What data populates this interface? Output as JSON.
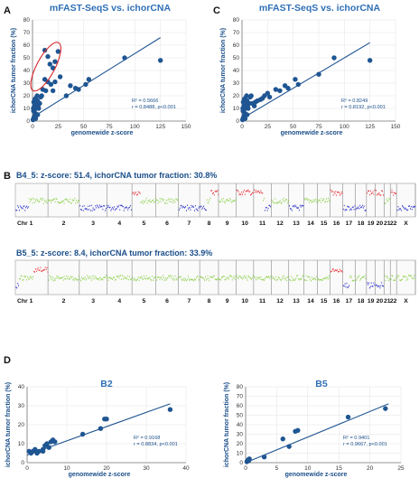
{
  "panels": {
    "A": "A",
    "B": "B",
    "C": "C",
    "D": "D"
  },
  "colors": {
    "point": "#1f5592",
    "title": "#2f6fb6",
    "gain": "#e8333a",
    "loss": "#2f35c9",
    "neutral": "#8fd14f",
    "ellipse": "#d7262b"
  },
  "cnv": {
    "b4_title": "B4_5: z-score: 51.4, ichorCNA tumor fraction: 30.8%",
    "b5_title": "B5_5: z-score: 8.4, ichorCNA tumor fraction: 33.9%",
    "chromosomes": [
      "Chr 1",
      "2",
      "3",
      "4",
      "5",
      "6",
      "7",
      "8",
      "9",
      "10",
      "11",
      "12",
      "13",
      "14",
      "15",
      "16",
      "17",
      "18",
      "19",
      "20",
      "21",
      "22",
      "X"
    ]
  },
  "chart_data": [
    {
      "id": "A",
      "type": "scatter",
      "title": "mFAST-SeqS vs. ichorCNA",
      "xlabel": "genomewide z-score",
      "ylabel": "ichorCNA tumor fraction (%)",
      "xlim": [
        0,
        150
      ],
      "ylim": [
        0,
        80
      ],
      "xticks": [
        0,
        25,
        50,
        75,
        100,
        125,
        150
      ],
      "yticks": [
        0,
        10,
        20,
        30,
        40,
        50,
        60,
        70,
        80
      ],
      "stats": [
        "R² = 0.5666",
        "r  = 0.8488, p<0.001"
      ],
      "fit": [
        [
          0,
          3
        ],
        [
          125,
          66
        ]
      ],
      "highlight": "ellipse",
      "x": [
        0.5,
        1,
        1.5,
        2,
        2.5,
        3,
        1,
        2,
        0.8,
        1.8,
        3.5,
        4,
        2.5,
        3,
        1.2,
        2.2,
        3,
        4.5,
        5,
        6,
        5,
        7,
        8,
        6,
        9,
        10,
        12,
        13,
        15,
        18,
        20,
        22,
        12,
        15,
        17,
        20,
        22,
        25,
        27,
        33,
        37,
        42,
        45,
        52,
        55,
        90,
        125
      ],
      "y": [
        1,
        2,
        3,
        4,
        5,
        6,
        8,
        9,
        10,
        12,
        11,
        14,
        3,
        2,
        15,
        17,
        18,
        20,
        5,
        10,
        16,
        14,
        19,
        13,
        20,
        25,
        33,
        24,
        31,
        29,
        24,
        31,
        56,
        51,
        45,
        42,
        47,
        55,
        35,
        20,
        28,
        26,
        25,
        29,
        33,
        50,
        48
      ]
    },
    {
      "id": "C",
      "type": "scatter",
      "title": "mFAST-SeqS vs. ichorCNA",
      "xlabel": "genomewide z-score",
      "ylabel": "ichorCNA tumor fraction (%)",
      "xlim": [
        0,
        150
      ],
      "ylim": [
        0,
        80
      ],
      "xticks": [
        0,
        25,
        50,
        75,
        100,
        125,
        150
      ],
      "yticks": [
        0,
        10,
        20,
        30,
        40,
        50,
        60,
        70,
        80
      ],
      "stats": [
        "R² = 0.8249",
        "r  = 0.8192, p<0.001"
      ],
      "fit": [
        [
          0,
          2
        ],
        [
          125,
          62
        ]
      ],
      "x": [
        0.5,
        1,
        1.5,
        2,
        2.5,
        3,
        1,
        2,
        0.8,
        1.8,
        3.5,
        4,
        2.5,
        3,
        1.2,
        2.2,
        3,
        4.5,
        5,
        6,
        5,
        7,
        8,
        6,
        9,
        10,
        12,
        13,
        15,
        18,
        20,
        22,
        25,
        27,
        33,
        37,
        42,
        45,
        52,
        55,
        75,
        90,
        125
      ],
      "y": [
        1,
        2,
        3,
        4,
        5,
        6,
        8,
        9,
        10,
        12,
        11,
        14,
        3,
        2,
        15,
        17,
        18,
        20,
        5,
        10,
        16,
        14,
        19,
        13,
        20,
        14,
        12,
        15,
        16,
        17,
        18,
        20,
        22,
        19,
        25,
        24,
        28,
        26,
        33,
        29,
        37,
        50,
        48
      ]
    },
    {
      "id": "D-B2",
      "type": "scatter",
      "title": "B2",
      "xlabel": "genomewide z-score",
      "ylabel": "ichorCNA tumor fraction (%)",
      "xlim": [
        0,
        40
      ],
      "ylim": [
        0,
        40
      ],
      "xticks": [
        0,
        10,
        20,
        30,
        40
      ],
      "yticks": [
        0,
        10,
        20,
        30,
        40
      ],
      "stats": [
        "R² = 0.9168",
        "r  = 0.8834, p<0.001"
      ],
      "fit": [
        [
          0,
          4
        ],
        [
          36,
          31
        ]
      ],
      "x": [
        0.5,
        1,
        1.5,
        2,
        2.5,
        3,
        4,
        4.5,
        5,
        5.5,
        6,
        6.5,
        7,
        4,
        14,
        18.5,
        19.5,
        20,
        36
      ],
      "y": [
        6,
        5,
        6,
        7,
        5,
        6,
        6,
        9,
        10,
        8,
        11,
        12,
        11,
        7,
        15,
        18,
        23,
        23,
        28
      ]
    },
    {
      "id": "D-B5",
      "type": "scatter",
      "title": "B5",
      "xlabel": "genomewide z-score",
      "ylabel": "ichorCNA tumor fraction (%)",
      "xlim": [
        0,
        25
      ],
      "ylim": [
        0,
        80
      ],
      "xticks": [
        0,
        5,
        10,
        15,
        20,
        25
      ],
      "yticks": [
        0,
        10,
        20,
        30,
        40,
        50,
        60,
        70,
        80
      ],
      "stats": [
        "R² = 0.9401",
        "r  = 0.9667, p<0.001"
      ],
      "fit": [
        [
          0,
          0
        ],
        [
          23,
          62
        ]
      ],
      "x": [
        0.2,
        0.4,
        0.5,
        0.6,
        3,
        6,
        7,
        8,
        8.4,
        16.5,
        22.5
      ],
      "y": [
        1,
        3,
        2,
        4,
        6,
        25,
        17,
        33,
        34,
        48,
        57
      ]
    }
  ]
}
